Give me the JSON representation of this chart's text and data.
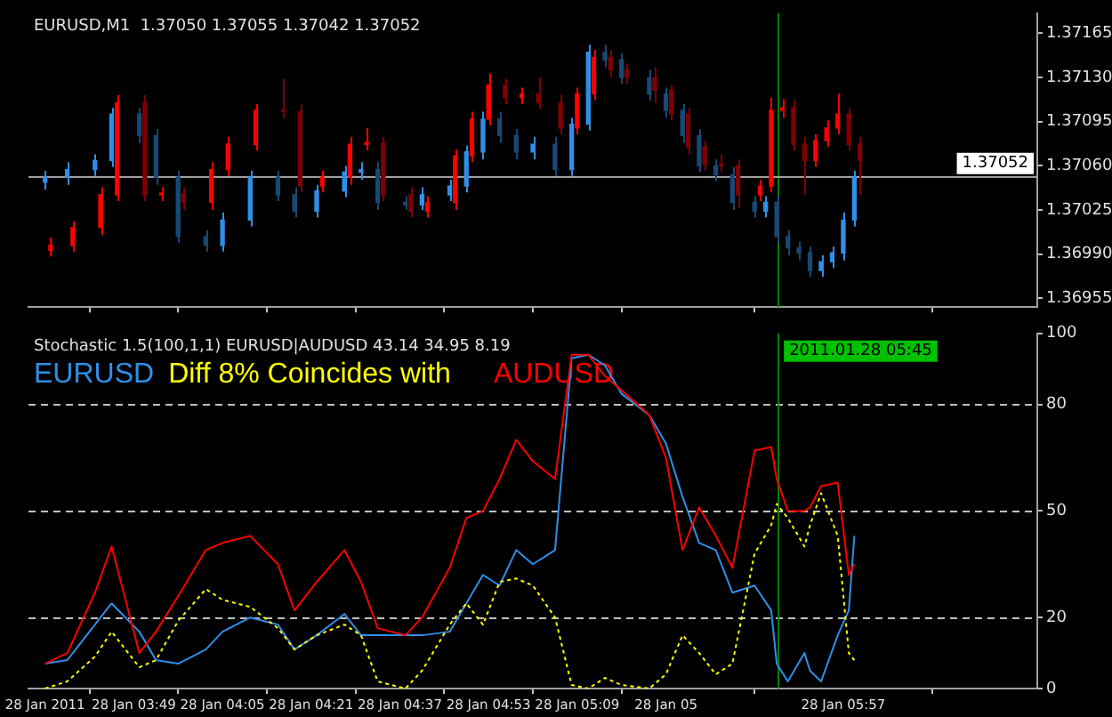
{
  "chart_data": [
    {
      "type": "candlestick",
      "title": "EURUSD,M1  1.37050 1.37055 1.37042 1.37052",
      "series": [
        {
          "x": [
            "2011-01-28T03:33",
            "2011-01-28T03:37",
            "2011-01-28T03:42",
            "2011-01-28T03:45",
            "2011-01-28T03:50",
            "2011-01-28T03:53",
            "2011-01-28T03:57",
            "2011-01-28T04:02",
            "2011-01-28T04:05",
            "2011-01-28T04:10",
            "2011-01-28T04:15",
            "2011-01-28T04:18",
            "2011-01-28T04:22",
            "2011-01-28T04:27",
            "2011-01-28T04:30",
            "2011-01-28T04:33",
            "2011-01-28T04:38",
            "2011-01-28T04:41",
            "2011-01-28T04:46",
            "2011-01-28T04:49",
            "2011-01-28T04:52",
            "2011-01-28T04:55",
            "2011-01-28T04:58",
            "2011-01-28T05:01",
            "2011-01-28T05:05",
            "2011-01-28T05:08",
            "2011-01-28T05:11",
            "2011-01-28T05:14",
            "2011-01-28T05:17",
            "2011-01-28T05:22",
            "2011-01-28T05:25",
            "2011-01-28T05:28",
            "2011-01-28T05:31",
            "2011-01-28T05:34",
            "2011-01-28T05:37",
            "2011-01-28T05:41",
            "2011-01-28T05:43",
            "2011-01-28T05:45",
            "2011-01-28T05:47",
            "2011-01-28T05:49",
            "2011-01-28T05:51",
            "2011-01-28T05:53",
            "2011-01-28T05:55",
            "2011-01-28T05:57",
            "2011-01-28T05:59"
          ],
          "colors": [
            "#2f8fe8",
            "#2f8fe8",
            "#2f8fe8",
            "#2f8fe8",
            "#184874",
            "#184874",
            "#184874",
            "#184874",
            "#2f8fe8",
            "#2f8fe8",
            "#184874",
            "#184874",
            "#2f8fe8",
            "#2f8fe8",
            "#2f8fe8",
            "#184874",
            "#184874",
            "#2f8fe8",
            "#2f8fe8",
            "#2f8fe8",
            "#2f8fe8",
            "#184874",
            "#184874",
            "#2f8fe8",
            "#184874",
            "#2f8fe8",
            "#2f8fe8",
            "#184874",
            "#184874",
            "#184874",
            "#184874",
            "#184874",
            "#184874",
            "#184874",
            "#184874",
            "#184874",
            "#2f8fe8",
            "#184874",
            "#184874",
            "#184874",
            "#184874",
            "#2f8fe8",
            "#2f8fe8",
            "#2f8fe8",
            "#2f8fe8"
          ],
          "ohlc": [
            [
              1.37047,
              1.37056,
              1.37041,
              1.37051
            ],
            [
              1.37051,
              1.37063,
              1.37045,
              1.37057
            ],
            [
              1.37057,
              1.37069,
              1.37052,
              1.37064
            ],
            [
              1.37064,
              1.37106,
              1.37059,
              1.37101
            ],
            [
              1.37101,
              1.37106,
              1.37078,
              1.37084
            ],
            [
              1.37084,
              1.37089,
              1.37045,
              1.37051
            ],
            [
              1.37051,
              1.37056,
              1.36999,
              1.37004
            ],
            [
              1.37004,
              1.37009,
              1.36992,
              1.36997
            ],
            [
              1.36997,
              1.37023,
              1.36992,
              1.37017
            ],
            [
              1.37017,
              1.37056,
              1.37012,
              1.37051
            ],
            [
              1.37051,
              1.37056,
              1.37032,
              1.37037
            ],
            [
              1.37037,
              1.37043,
              1.37019,
              1.37024
            ],
            [
              1.37024,
              1.37045,
              1.37019,
              1.3704
            ],
            [
              1.3704,
              1.3706,
              1.37035,
              1.37055
            ],
            [
              1.37055,
              1.37063,
              1.37049,
              1.37057
            ],
            [
              1.37057,
              1.37063,
              1.37025,
              1.37031
            ],
            [
              1.37031,
              1.37036,
              1.37025,
              1.37029
            ],
            [
              1.37029,
              1.37043,
              1.37025,
              1.37037
            ],
            [
              1.37037,
              1.37049,
              1.37032,
              1.37044
            ],
            [
              1.37044,
              1.37076,
              1.37039,
              1.37071
            ],
            [
              1.37071,
              1.37103,
              1.37065,
              1.37097
            ],
            [
              1.37097,
              1.37103,
              1.37078,
              1.37084
            ],
            [
              1.37084,
              1.37089,
              1.37065,
              1.37071
            ],
            [
              1.37071,
              1.37083,
              1.37065,
              1.37077
            ],
            [
              1.37077,
              1.37083,
              1.37052,
              1.37057
            ],
            [
              1.37057,
              1.37098,
              1.37052,
              1.37093
            ],
            [
              1.37093,
              1.37156,
              1.37088,
              1.3715
            ],
            [
              1.3715,
              1.37156,
              1.37138,
              1.37144
            ],
            [
              1.37144,
              1.37149,
              1.37125,
              1.3713
            ],
            [
              1.3713,
              1.37136,
              1.37112,
              1.37117
            ],
            [
              1.37117,
              1.37122,
              1.37098,
              1.37104
            ],
            [
              1.37104,
              1.37109,
              1.37078,
              1.37084
            ],
            [
              1.37084,
              1.37089,
              1.37055,
              1.3706
            ],
            [
              1.3706,
              1.37065,
              1.37048,
              1.37053
            ],
            [
              1.37053,
              1.37059,
              1.37025,
              1.37031
            ],
            [
              1.37031,
              1.37036,
              1.37019,
              1.37024
            ],
            [
              1.37024,
              1.37036,
              1.37019,
              1.37031
            ],
            [
              1.37031,
              1.37036,
              1.36999,
              1.37004
            ],
            [
              1.37004,
              1.37009,
              1.36989,
              1.36995
            ],
            [
              1.36995,
              1.37,
              1.36985,
              1.36991
            ],
            [
              1.36991,
              1.36996,
              1.36972,
              1.36977
            ],
            [
              1.36977,
              1.36989,
              1.36972,
              1.36984
            ],
            [
              1.36984,
              1.36996,
              1.36979,
              1.36991
            ],
            [
              1.36991,
              1.37023,
              1.36985,
              1.37017
            ],
            [
              1.37017,
              1.37056,
              1.37012,
              1.37051
            ]
          ]
        },
        {
          "x": [
            "2011-01-28T03:34",
            "2011-01-28T03:38",
            "2011-01-28T03:43",
            "2011-01-28T03:46",
            "2011-01-28T03:51",
            "2011-01-28T03:54",
            "2011-01-28T03:58",
            "2011-01-28T04:03",
            "2011-01-28T04:06",
            "2011-01-28T04:11",
            "2011-01-28T04:16",
            "2011-01-28T04:19",
            "2011-01-28T04:23",
            "2011-01-28T04:28",
            "2011-01-28T04:31",
            "2011-01-28T04:34",
            "2011-01-28T04:39",
            "2011-01-28T04:42",
            "2011-01-28T04:47",
            "2011-01-28T04:50",
            "2011-01-28T04:53",
            "2011-01-28T04:56",
            "2011-01-28T04:59",
            "2011-01-28T05:02",
            "2011-01-28T05:06",
            "2011-01-28T05:09",
            "2011-01-28T05:12",
            "2011-01-28T05:15",
            "2011-01-28T05:18",
            "2011-01-28T05:23",
            "2011-01-28T05:26",
            "2011-01-28T05:29",
            "2011-01-28T05:32",
            "2011-01-28T05:35",
            "2011-01-28T05:38",
            "2011-01-28T05:42",
            "2011-01-28T05:44",
            "2011-01-28T05:46",
            "2011-01-28T05:48",
            "2011-01-28T05:50",
            "2011-01-28T05:52",
            "2011-01-28T05:54",
            "2011-01-28T05:56",
            "2011-01-28T05:58",
            "2011-01-28T06:00"
          ],
          "colors": [
            "#ff0000",
            "#ff0000",
            "#ff0000",
            "#ff0000",
            "#800000",
            "#ff0000",
            "#800000",
            "#ff0000",
            "#ff0000",
            "#ff0000",
            "#800000",
            "#800000",
            "#ff0000",
            "#ff0000",
            "#ff0000",
            "#800000",
            "#800000",
            "#ff0000",
            "#ff0000",
            "#ff0000",
            "#ff0000",
            "#800000",
            "#ff0000",
            "#800000",
            "#800000",
            "#ff0000",
            "#ff0000",
            "#800000",
            "#800000",
            "#800000",
            "#800000",
            "#800000",
            "#800000",
            "#800000",
            "#800000",
            "#ff0000",
            "#ff0000",
            "#ff0000",
            "#800000",
            "#800000",
            "#ff0000",
            "#ff0000",
            "#ff0000",
            "#800000",
            "#800000"
          ],
          "ohlc": [
            [
              1.36993,
              1.37003,
              1.36988,
              1.36997
            ],
            [
              1.36997,
              1.37016,
              1.36992,
              1.37011
            ],
            [
              1.37011,
              1.37043,
              1.37005,
              1.37037
            ],
            [
              1.37037,
              1.37116,
              1.37032,
              1.3711
            ],
            [
              1.3711,
              1.37116,
              1.37032,
              1.37037
            ],
            [
              1.37037,
              1.37043,
              1.37032,
              1.37038
            ],
            [
              1.37038,
              1.37043,
              1.37025,
              1.37031
            ],
            [
              1.37031,
              1.37063,
              1.37025,
              1.37057
            ],
            [
              1.37057,
              1.37083,
              1.37052,
              1.37077
            ],
            [
              1.37077,
              1.37109,
              1.37072,
              1.37104
            ],
            [
              1.37104,
              1.37129,
              1.37098,
              1.37103
            ],
            [
              1.37103,
              1.37109,
              1.37039,
              1.37044
            ],
            [
              1.37044,
              1.37056,
              1.37039,
              1.37051
            ],
            [
              1.37051,
              1.37083,
              1.37045,
              1.37077
            ],
            [
              1.37077,
              1.3709,
              1.37072,
              1.37078
            ],
            [
              1.37078,
              1.37083,
              1.37032,
              1.37037
            ],
            [
              1.37037,
              1.37043,
              1.37019,
              1.37024
            ],
            [
              1.37024,
              1.37036,
              1.37019,
              1.37031
            ],
            [
              1.37031,
              1.37073,
              1.37025,
              1.37068
            ],
            [
              1.37068,
              1.37103,
              1.37063,
              1.37097
            ],
            [
              1.37097,
              1.37133,
              1.37092,
              1.37124
            ],
            [
              1.37124,
              1.37129,
              1.37109,
              1.37114
            ],
            [
              1.37114,
              1.37122,
              1.37109,
              1.37117
            ],
            [
              1.37117,
              1.3713,
              1.37105,
              1.3711
            ],
            [
              1.3711,
              1.37116,
              1.37085,
              1.3709
            ],
            [
              1.3709,
              1.37122,
              1.37085,
              1.37117
            ],
            [
              1.37117,
              1.37152,
              1.37112,
              1.37146
            ],
            [
              1.37146,
              1.37152,
              1.3713,
              1.37136
            ],
            [
              1.37136,
              1.37141,
              1.37125,
              1.3713
            ],
            [
              1.3713,
              1.37138,
              1.3711,
              1.3712
            ],
            [
              1.3712,
              1.37124,
              1.37096,
              1.37101
            ],
            [
              1.37101,
              1.37106,
              1.37069,
              1.37075
            ],
            [
              1.37075,
              1.3708,
              1.37056,
              1.37061
            ],
            [
              1.37061,
              1.37069,
              1.37055,
              1.3706
            ],
            [
              1.3706,
              1.37065,
              1.37027,
              1.37037
            ],
            [
              1.37037,
              1.37049,
              1.37032,
              1.37044
            ],
            [
              1.37044,
              1.37114,
              1.37039,
              1.37104
            ],
            [
              1.37104,
              1.37113,
              1.37098,
              1.37106
            ],
            [
              1.37106,
              1.37112,
              1.37072,
              1.37077
            ],
            [
              1.37077,
              1.37083,
              1.37037,
              1.37064
            ],
            [
              1.37064,
              1.37085,
              1.37059,
              1.3708
            ],
            [
              1.3708,
              1.37096,
              1.37075,
              1.3709
            ],
            [
              1.3709,
              1.37117,
              1.37085,
              1.37101
            ],
            [
              1.37101,
              1.37106,
              1.37072,
              1.37077
            ],
            [
              1.37077,
              1.37083,
              1.37037,
              1.37064
            ]
          ]
        }
      ],
      "xlim": [
        "2011-01-28T03:30",
        "2011-01-28T06:32"
      ],
      "xticks": [
        {
          "value": "2011-01-28T03:33",
          "label": null
        },
        {
          "value": "2011-01-28T03:49",
          "label": null
        },
        {
          "value": "2011-01-28T04:05",
          "label": null
        },
        {
          "value": "2011-01-28T04:21",
          "label": null
        },
        {
          "value": "2011-01-28T04:37",
          "label": null
        },
        {
          "value": "2011-01-28T04:53",
          "label": null
        },
        {
          "value": "2011-01-28T05:09",
          "label": null
        },
        {
          "value": "2011-01-28T05:25",
          "label": null
        },
        {
          "value": "2011-01-28T05:57",
          "label": null
        }
      ],
      "ylim": [
        1.36948,
        1.37181
      ],
      "yticks": [
        {
          "value": 1.36955,
          "label": "1.36955"
        },
        {
          "value": 1.3699,
          "label": "1.36990"
        },
        {
          "value": 1.37025,
          "label": "1.37025"
        },
        {
          "value": 1.3706,
          "label": "1.37060"
        },
        {
          "value": 1.37095,
          "label": "1.37095"
        },
        {
          "value": 1.3713,
          "label": "1.37130"
        },
        {
          "value": 1.37165,
          "label": "1.37165"
        }
      ],
      "tick_labels": "y",
      "ref_lines": [
        {
          "axis": "x",
          "value": "2011-01-28T05:45",
          "color": "#008000"
        },
        {
          "axis": "y",
          "value": 1.37052,
          "label": "1.37052",
          "color": "#a0a0a0"
        }
      ]
    },
    {
      "type": "line",
      "title": "Stochastic 1.5(100,1,1) EURUSD|AUDUSD 43.14 34.95 8.19",
      "x": [
        "2011-01-28T03:33",
        "2011-01-28T03:37",
        "2011-01-28T03:42",
        "2011-01-28T03:45",
        "2011-01-28T03:50",
        "2011-01-28T03:53",
        "2011-01-28T03:57",
        "2011-01-28T04:02",
        "2011-01-28T04:05",
        "2011-01-28T04:10",
        "2011-01-28T04:15",
        "2011-01-28T04:18",
        "2011-01-28T04:22",
        "2011-01-28T04:27",
        "2011-01-28T04:30",
        "2011-01-28T04:33",
        "2011-01-28T04:38",
        "2011-01-28T04:41",
        "2011-01-28T04:46",
        "2011-01-28T04:49",
        "2011-01-28T04:52",
        "2011-01-28T04:55",
        "2011-01-28T04:58",
        "2011-01-28T05:01",
        "2011-01-28T05:05",
        "2011-01-28T05:08",
        "2011-01-28T05:11",
        "2011-01-28T05:14",
        "2011-01-28T05:17",
        "2011-01-28T05:22",
        "2011-01-28T05:25",
        "2011-01-28T05:28",
        "2011-01-28T05:31",
        "2011-01-28T05:34",
        "2011-01-28T05:37",
        "2011-01-28T05:41",
        "2011-01-28T05:44",
        "2011-01-28T05:45",
        "2011-01-28T05:47",
        "2011-01-28T05:50",
        "2011-01-28T05:51",
        "2011-01-28T05:53",
        "2011-01-28T05:56",
        "2011-01-28T05:58",
        "2011-01-28T05:59"
      ],
      "series": [
        {
          "name": "EURUSD",
          "color": "#2f8fe8",
          "values": [
            7,
            8,
            18,
            24,
            16,
            8,
            7,
            11,
            16,
            20,
            18,
            11,
            15,
            21,
            15,
            15,
            15,
            15,
            16,
            24,
            32,
            29,
            39,
            35,
            39,
            93,
            94,
            91,
            83,
            77,
            69,
            54,
            41,
            39,
            27,
            29,
            22,
            7,
            2,
            10,
            5,
            2,
            15,
            22,
            43
          ]
        },
        {
          "name": "AUDUSD",
          "color": "#ff0000",
          "values": [
            7,
            10,
            27,
            40,
            10,
            16,
            26,
            39,
            41,
            43,
            35,
            22,
            30,
            39,
            30,
            17,
            15,
            20,
            34,
            48,
            50,
            59,
            70,
            64,
            59,
            94,
            94,
            88,
            84,
            77,
            65,
            39,
            51,
            43,
            34,
            67,
            68,
            59,
            50,
            50,
            51,
            57,
            58,
            32,
            35
          ]
        },
        {
          "name": "Diff 8% Coincides with",
          "color": "#ffff00",
          "line_style": "dotted",
          "values": [
            0,
            2,
            9,
            16,
            6,
            8,
            19,
            28,
            25,
            23,
            17,
            11,
            15,
            18,
            15,
            2,
            0,
            5,
            18,
            24,
            18,
            30,
            31,
            29,
            20,
            1,
            0,
            3,
            1,
            0,
            4,
            15,
            10,
            4,
            7,
            38,
            46,
            52,
            48,
            40,
            46,
            55,
            43,
            10,
            8
          ]
        }
      ],
      "legend": "top left",
      "marker": "none",
      "xlim": [
        "2011-01-28T03:30",
        "2011-01-28T06:32"
      ],
      "xticks": [
        {
          "value": "2011-01-28T03:33",
          "label": "28 Jan 2011"
        },
        {
          "value": "2011-01-28T03:49",
          "label": "28 Jan 03:49"
        },
        {
          "value": "2011-01-28T04:05",
          "label": "28 Jan 04:05"
        },
        {
          "value": "2011-01-28T04:21",
          "label": "28 Jan 04:21"
        },
        {
          "value": "2011-01-28T04:37",
          "label": "28 Jan 04:37"
        },
        {
          "value": "2011-01-28T04:53",
          "label": "28 Jan 04:53"
        },
        {
          "value": "2011-01-28T05:09",
          "label": "28 Jan 05:09"
        },
        {
          "value": "2011-01-28T05:25",
          "label": "28 Jan 05"
        },
        {
          "value": "2011-01-28T05:57",
          "label": "28 Jan 05:57"
        }
      ],
      "ylim": [
        0,
        100
      ],
      "yticks": [
        0,
        20,
        50,
        80,
        100
      ],
      "ref_lines": [
        {
          "axis": "y",
          "value": 20,
          "color": "#c0c0c0",
          "line_style": "dashed"
        },
        {
          "axis": "y",
          "value": 50,
          "color": "#c0c0c0",
          "line_style": "dashed"
        },
        {
          "axis": "y",
          "value": 80,
          "color": "#c0c0c0",
          "line_style": "dashed"
        },
        {
          "axis": "x",
          "value": "2011-01-28T05:45",
          "label": "2011.01.28 05:45",
          "color": "#008000"
        }
      ]
    }
  ]
}
